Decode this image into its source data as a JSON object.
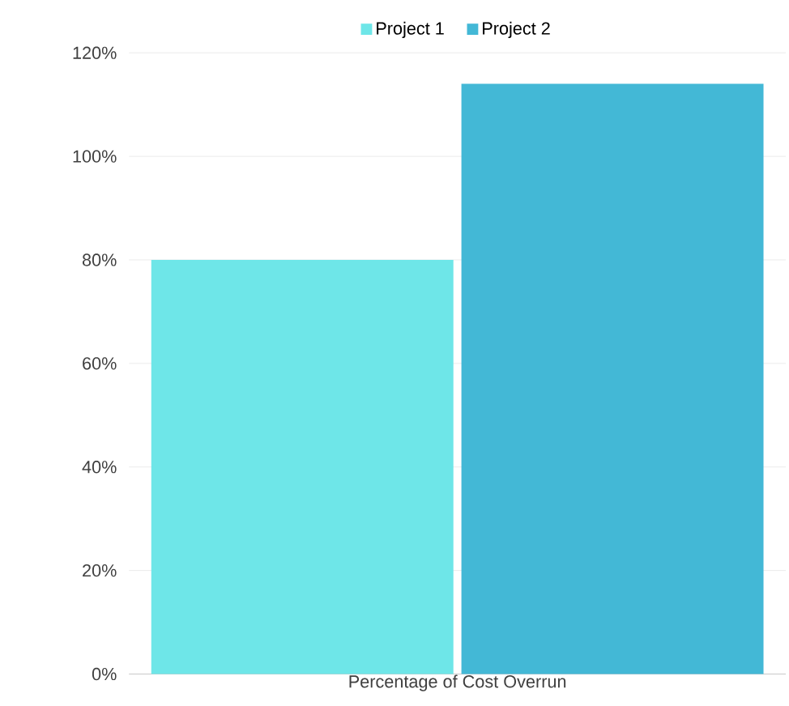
{
  "chart_data": {
    "type": "bar",
    "categories": [
      "Percentage of Cost Overrun"
    ],
    "series": [
      {
        "name": "Project 1",
        "color": "#6ee6e8",
        "values": [
          80
        ]
      },
      {
        "name": "Project 2",
        "color": "#43b8d6",
        "values": [
          114
        ]
      }
    ],
    "ylim": [
      0,
      120
    ],
    "yticks": [
      {
        "value": 0,
        "label": "0%"
      },
      {
        "value": 20,
        "label": "20%"
      },
      {
        "value": 40,
        "label": "40%"
      },
      {
        "value": 60,
        "label": "60%"
      },
      {
        "value": 80,
        "label": "80%"
      },
      {
        "value": 100,
        "label": "100%"
      },
      {
        "value": 120,
        "label": "120%"
      }
    ],
    "grid": "y",
    "legend": "top"
  }
}
